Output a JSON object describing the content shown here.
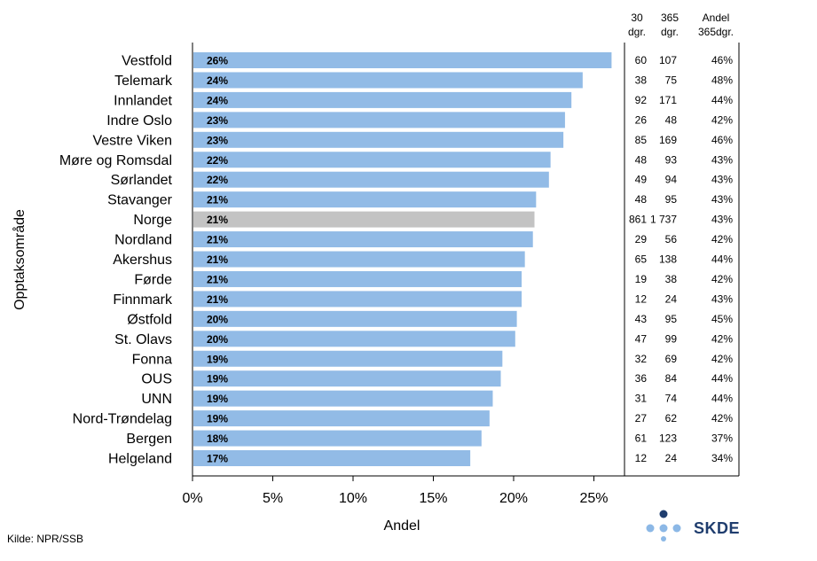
{
  "chart_data": {
    "type": "bar",
    "orientation": "horizontal",
    "ylabel": "Opptaksområde",
    "xlabel": "Andel",
    "xlim": [
      0,
      0.25
    ],
    "xticks": [
      "0%",
      "5%",
      "10%",
      "15%",
      "20%",
      "25%"
    ],
    "tick_values": [
      0,
      0.05,
      0.1,
      0.15,
      0.2,
      0.25
    ],
    "categories": [
      "Vestfold",
      "Telemark",
      "Innlandet",
      "Indre Oslo",
      "Vestre Viken",
      "Møre og Romsdal",
      "Sørlandet",
      "Stavanger",
      "Norge",
      "Nordland",
      "Akershus",
      "Førde",
      "Finnmark",
      "Østfold",
      "St. Olavs",
      "Fonna",
      "OUS",
      "UNN",
      "Nord-Trøndelag",
      "Bergen",
      "Helgeland"
    ],
    "values": [
      0.261,
      0.243,
      0.236,
      0.232,
      0.231,
      0.223,
      0.222,
      0.214,
      0.213,
      0.212,
      0.207,
      0.205,
      0.205,
      0.202,
      0.201,
      0.193,
      0.192,
      0.187,
      0.185,
      0.18,
      0.173
    ],
    "value_labels": [
      "26%",
      "24%",
      "24%",
      "23%",
      "23%",
      "22%",
      "22%",
      "21%",
      "21%",
      "21%",
      "21%",
      "21%",
      "21%",
      "20%",
      "20%",
      "19%",
      "19%",
      "19%",
      "19%",
      "18%",
      "17%"
    ],
    "highlight_category": "Norge",
    "colors": {
      "bar": "#92bbe6",
      "highlight": "#c3c3c3"
    },
    "table": {
      "headers": [
        [
          "30",
          "dgr."
        ],
        [
          "365",
          "dgr."
        ],
        [
          "Andel",
          "365dgr."
        ]
      ],
      "rows": [
        [
          "60",
          "107",
          "46%"
        ],
        [
          "38",
          "75",
          "48%"
        ],
        [
          "92",
          "171",
          "44%"
        ],
        [
          "26",
          "48",
          "42%"
        ],
        [
          "85",
          "169",
          "46%"
        ],
        [
          "48",
          "93",
          "43%"
        ],
        [
          "49",
          "94",
          "43%"
        ],
        [
          "48",
          "95",
          "43%"
        ],
        [
          "861",
          "1 737",
          "43%"
        ],
        [
          "29",
          "56",
          "42%"
        ],
        [
          "65",
          "138",
          "44%"
        ],
        [
          "19",
          "38",
          "42%"
        ],
        [
          "12",
          "24",
          "43%"
        ],
        [
          "43",
          "95",
          "45%"
        ],
        [
          "47",
          "99",
          "42%"
        ],
        [
          "32",
          "69",
          "42%"
        ],
        [
          "36",
          "84",
          "44%"
        ],
        [
          "31",
          "74",
          "44%"
        ],
        [
          "27",
          "62",
          "42%"
        ],
        [
          "61",
          "123",
          "37%"
        ],
        [
          "12",
          "24",
          "34%"
        ]
      ]
    }
  },
  "source": "Kilde: NPR/SSB",
  "logo": {
    "text": "SKDE",
    "colors": {
      "dark": "#1f3d6e",
      "light": "#8cb8e6"
    }
  }
}
